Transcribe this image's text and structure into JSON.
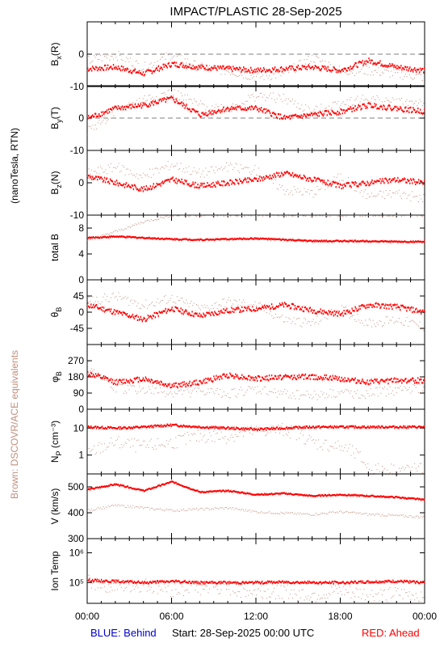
{
  "title": "IMPACT/PLASTIC   28-Sep-2025",
  "left_label_units": "(nanoTesla, RTN)",
  "left_label_brown": "Brown: DSCOVR/ACE equivalents",
  "footer": {
    "blue": "BLUE: Behind",
    "start": "Start: 28-Sep-2025 00:00 UTC",
    "red": "RED: Ahead"
  },
  "colors": {
    "ahead": "#ff0000",
    "behind": "#0000cc",
    "dscovr": "#c09080",
    "axis": "#000000"
  },
  "x_ticks": [
    "00:00",
    "06:00",
    "12:00",
    "18:00",
    "00:00"
  ],
  "chart_data": [
    {
      "type": "scatter",
      "id": "bx",
      "ylabel": "B",
      "ylabel_sub": "x",
      "ylabel_suffix": "(R)",
      "ylim": [
        -10,
        10
      ],
      "yticks": [
        -10,
        0
      ],
      "dashed_at": [
        0
      ],
      "x_hours": [
        0,
        2,
        4,
        6,
        8,
        10,
        12,
        14,
        16,
        18,
        20,
        22,
        24
      ],
      "series": [
        {
          "name": "Ahead",
          "y": [
            -4.5,
            -4,
            -6,
            -3,
            -4,
            -4.5,
            -5,
            -4.5,
            -4,
            -5,
            -2,
            -4,
            -5
          ]
        },
        {
          "name": "DSCOVR/ACE",
          "y": [
            -2,
            0,
            -4,
            0,
            -4,
            -5,
            -7,
            -6,
            -1,
            -5,
            -5,
            -6,
            -7
          ]
        }
      ]
    },
    {
      "type": "scatter",
      "id": "by",
      "ylabel": "B",
      "ylabel_sub": "y",
      "ylabel_suffix": "(T)",
      "ylim": [
        -10,
        10
      ],
      "yticks": [
        -10,
        0
      ],
      "dashed_at": [
        0
      ],
      "x_hours": [
        0,
        2,
        4,
        6,
        8,
        10,
        12,
        14,
        16,
        18,
        20,
        22,
        24
      ],
      "series": [
        {
          "name": "Ahead",
          "y": [
            0,
            3,
            4,
            6,
            1,
            3,
            3,
            0,
            1,
            2,
            4,
            3,
            2
          ]
        },
        {
          "name": "DSCOVR/ACE",
          "y": [
            -4,
            2,
            6,
            8,
            4,
            3,
            7,
            6,
            2,
            5,
            6,
            5,
            5
          ]
        }
      ]
    },
    {
      "type": "scatter",
      "id": "bz",
      "ylabel": "B",
      "ylabel_sub": "z",
      "ylabel_suffix": "(N)",
      "ylim": [
        -10,
        10
      ],
      "yticks": [
        -10,
        0
      ],
      "dashed_at": [],
      "x_hours": [
        0,
        2,
        4,
        6,
        8,
        10,
        12,
        14,
        16,
        18,
        20,
        22,
        24
      ],
      "series": [
        {
          "name": "Ahead",
          "y": [
            2,
            0,
            -2,
            1,
            -1,
            0,
            1,
            3,
            1,
            -1,
            0,
            1,
            0
          ]
        },
        {
          "name": "DSCOVR/ACE",
          "y": [
            3,
            5,
            2,
            6,
            3,
            5,
            4,
            -2,
            -3,
            2,
            -4,
            -3,
            -5
          ]
        }
      ]
    },
    {
      "type": "scatter",
      "id": "bt",
      "ylabel": "total B",
      "ylabel_sub": "",
      "ylabel_suffix": "",
      "ylim": [
        0,
        10
      ],
      "yticks": [
        0,
        4,
        8
      ],
      "dashed_at": [],
      "x_hours": [
        0,
        2,
        4,
        6,
        8,
        10,
        12,
        14,
        16,
        18,
        20,
        22,
        24
      ],
      "series": [
        {
          "name": "Ahead",
          "y": [
            6.5,
            6.7,
            6.5,
            6.3,
            6.2,
            6.3,
            6.4,
            6.2,
            6.0,
            6.0,
            6.0,
            5.9,
            5.9
          ]
        },
        {
          "name": "DSCOVR/ACE",
          "y": [
            6,
            7.5,
            9,
            10,
            10,
            10,
            10,
            10,
            10,
            10,
            10,
            10,
            10
          ]
        }
      ]
    },
    {
      "type": "scatter",
      "id": "theta",
      "ylabel": "θ",
      "ylabel_sub": "B",
      "ylabel_suffix": "",
      "ylim": [
        -90,
        90
      ],
      "yticks": [
        -45,
        0,
        45
      ],
      "dashed_at": [],
      "x_hours": [
        0,
        2,
        4,
        6,
        8,
        10,
        12,
        14,
        16,
        18,
        20,
        22,
        24
      ],
      "series": [
        {
          "name": "Ahead",
          "y": [
            20,
            0,
            -20,
            10,
            -10,
            5,
            10,
            20,
            5,
            -5,
            20,
            15,
            0
          ]
        },
        {
          "name": "DSCOVR/ACE",
          "y": [
            30,
            45,
            20,
            40,
            10,
            30,
            20,
            -20,
            -30,
            10,
            -30,
            -20,
            -40
          ]
        }
      ]
    },
    {
      "type": "scatter",
      "id": "phi",
      "ylabel": "φ",
      "ylabel_sub": "B",
      "ylabel_suffix": "",
      "ylim": [
        0,
        360
      ],
      "yticks": [
        0,
        90,
        180,
        270
      ],
      "dashed_at": [],
      "x_hours": [
        0,
        2,
        4,
        6,
        8,
        10,
        12,
        14,
        16,
        18,
        20,
        22,
        24
      ],
      "series": [
        {
          "name": "Ahead",
          "y": [
            200,
            150,
            170,
            130,
            150,
            190,
            170,
            180,
            180,
            170,
            150,
            160,
            160
          ]
        },
        {
          "name": "DSCOVR/ACE",
          "y": [
            250,
            120,
            110,
            90,
            100,
            90,
            110,
            90,
            80,
            90,
            90,
            110,
            120
          ]
        }
      ]
    },
    {
      "type": "scatter",
      "id": "np",
      "log": true,
      "ylabel": "N",
      "ylabel_sub": "P",
      "ylabel_suffix": " (cm⁻³)",
      "ylim": [
        0.2,
        50
      ],
      "yticks": [
        1,
        10
      ],
      "dashed_at": [],
      "x_hours": [
        0,
        2,
        4,
        6,
        8,
        10,
        12,
        14,
        16,
        18,
        20,
        22,
        24
      ],
      "series": [
        {
          "name": "Ahead",
          "y": [
            11,
            10,
            11,
            13,
            11,
            10,
            9,
            10,
            11,
            11,
            11,
            11,
            11
          ]
        },
        {
          "name": "DSCOVR/ACE",
          "y": [
            1,
            3,
            2,
            3,
            5,
            5,
            8,
            9,
            3,
            2,
            0.3,
            0.3,
            0.3
          ]
        }
      ]
    },
    {
      "type": "scatter",
      "id": "v",
      "ylabel": "V (km/s)",
      "ylabel_sub": "",
      "ylabel_suffix": "",
      "ylim": [
        300,
        550
      ],
      "yticks": [
        300,
        400,
        500
      ],
      "dashed_at": [],
      "x_hours": [
        0,
        2,
        4,
        6,
        8,
        10,
        12,
        14,
        16,
        18,
        20,
        22,
        24
      ],
      "series": [
        {
          "name": "Ahead",
          "y": [
            490,
            510,
            485,
            520,
            480,
            485,
            470,
            475,
            465,
            470,
            465,
            460,
            450
          ]
        },
        {
          "name": "DSCOVR/ACE",
          "y": [
            410,
            430,
            420,
            410,
            415,
            420,
            405,
            400,
            395,
            405,
            395,
            390,
            385
          ]
        }
      ]
    },
    {
      "type": "scatter",
      "id": "temp",
      "log": true,
      "ylabel": "Ion Temp",
      "ylabel_sub": "",
      "ylabel_suffix": "",
      "ylim": [
        20000,
        3000000
      ],
      "yticks": [
        100000,
        1000000
      ],
      "ytick_labels": [
        "10⁵",
        "10⁶"
      ],
      "dashed_at": [],
      "x_hours": [
        0,
        2,
        4,
        6,
        8,
        10,
        12,
        14,
        16,
        18,
        20,
        22,
        24
      ],
      "series": [
        {
          "name": "Ahead",
          "y": [
            120000,
            110000,
            100000,
            110000,
            100000,
            100000,
            100000,
            105000,
            100000,
            100000,
            105000,
            110000,
            100000
          ]
        },
        {
          "name": "DSCOVR/ACE",
          "y": [
            110000,
            70000,
            80000,
            60000,
            70000,
            60000,
            50000,
            50000,
            40000,
            50000,
            40000,
            40000,
            40000
          ]
        }
      ]
    }
  ]
}
